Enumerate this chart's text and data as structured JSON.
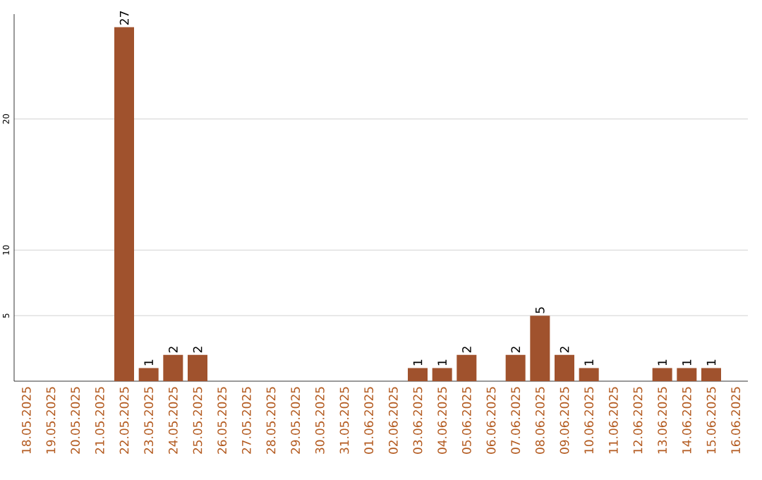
{
  "chart_data": {
    "type": "bar",
    "categories": [
      "18.05.2025",
      "19.05.2025",
      "20.05.2025",
      "21.05.2025",
      "22.05.2025",
      "23.05.2025",
      "24.05.2025",
      "25.05.2025",
      "26.05.2025",
      "27.05.2025",
      "28.05.2025",
      "29.05.2025",
      "30.05.2025",
      "31.05.2025",
      "01.06.2025",
      "02.06.2025",
      "03.06.2025",
      "04.06.2025",
      "05.06.2025",
      "06.06.2025",
      "07.06.2025",
      "08.06.2025",
      "09.06.2025",
      "10.06.2025",
      "11.06.2025",
      "12.06.2025",
      "13.06.2025",
      "14.06.2025",
      "15.06.2025",
      "16.06.2025"
    ],
    "values": [
      0,
      0,
      0,
      0,
      27,
      1,
      2,
      2,
      0,
      0,
      0,
      0,
      0,
      0,
      0,
      0,
      1,
      1,
      2,
      0,
      2,
      5,
      2,
      1,
      0,
      0,
      1,
      1,
      1,
      0
    ],
    "value_labels": [
      null,
      null,
      null,
      null,
      "27",
      "1",
      "2",
      "2",
      null,
      null,
      null,
      null,
      null,
      null,
      null,
      null,
      "1",
      "1",
      "2",
      null,
      "2",
      "5",
      "2",
      "1",
      null,
      null,
      "1",
      "1",
      "1",
      null
    ],
    "color": "#a0522d",
    "ylim": [
      0,
      28
    ],
    "yticks": [
      5,
      10,
      20
    ],
    "grid": "y"
  }
}
